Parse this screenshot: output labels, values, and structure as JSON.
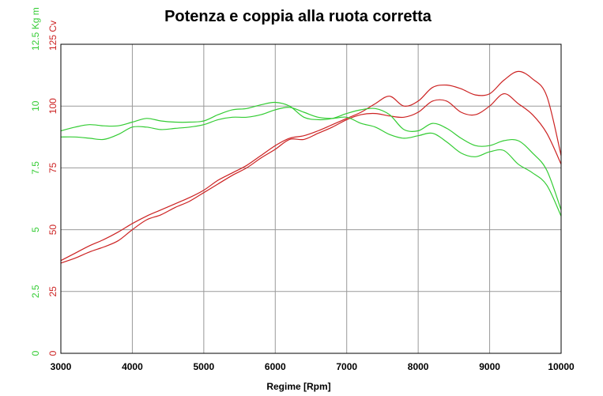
{
  "chart_data": {
    "type": "line",
    "title": "Potenza e coppia alla ruota corretta",
    "xlabel": "Regime [Rpm]",
    "xlim": [
      3000,
      10000
    ],
    "xticks": [
      "3000",
      "4000",
      "5000",
      "6000",
      "7000",
      "8000",
      "9000",
      "10000"
    ],
    "y_axes": [
      {
        "label": "12.5 Kg m",
        "color": "#33cc33",
        "ylim": [
          0,
          12.5
        ],
        "ticks": [
          "0",
          "2.5",
          "5",
          "7.5",
          "10",
          "12.5"
        ]
      },
      {
        "label": "125 Cv",
        "color": "#cc2222",
        "ylim": [
          0,
          125
        ],
        "ticks": [
          "0",
          "25",
          "50",
          "75",
          "100",
          "125"
        ]
      }
    ],
    "grid": true,
    "series": [
      {
        "axis": "power",
        "color": "#cc2222",
        "x": [
          3000,
          3200,
          3400,
          3600,
          3800,
          4000,
          4200,
          4400,
          4600,
          4800,
          5000,
          5200,
          5400,
          5600,
          5800,
          6000,
          6200,
          6400,
          6600,
          6800,
          7000,
          7200,
          7400,
          7600,
          7800,
          8000,
          8200,
          8400,
          8600,
          8800,
          9000,
          9200,
          9400,
          9600,
          9800,
          10000
        ],
        "y": [
          37.5,
          40.5,
          43.5,
          46,
          49,
          52.5,
          55.5,
          58,
          60.5,
          63,
          66,
          70,
          73,
          76,
          80,
          84,
          87,
          88,
          90,
          92.5,
          95,
          97.5,
          101,
          104,
          100,
          102,
          107.5,
          108.5,
          107,
          104.5,
          105,
          110.5,
          114,
          111,
          104,
          80
        ]
      },
      {
        "axis": "power",
        "color": "#cc2222",
        "x": [
          3000,
          3200,
          3400,
          3600,
          3800,
          4000,
          4200,
          4400,
          4600,
          4800,
          5000,
          5200,
          5400,
          5600,
          5800,
          6000,
          6200,
          6400,
          6600,
          6800,
          7000,
          7200,
          7400,
          7600,
          7800,
          8000,
          8200,
          8400,
          8600,
          8800,
          9000,
          9200,
          9400,
          9600,
          9800,
          10000
        ],
        "y": [
          36.5,
          38.5,
          41,
          43,
          45.5,
          50,
          54,
          56,
          59,
          61.5,
          65,
          68.5,
          72,
          75,
          79,
          82.5,
          86.5,
          86.5,
          89,
          91.5,
          94.5,
          96.5,
          97,
          96,
          95.5,
          97.5,
          102,
          102,
          97.5,
          96.5,
          100,
          105,
          101,
          96.5,
          89,
          76.5
        ]
      },
      {
        "axis": "torque",
        "color": "#33cc33",
        "x": [
          3000,
          3200,
          3400,
          3600,
          3800,
          4000,
          4200,
          4400,
          4600,
          4800,
          5000,
          5200,
          5400,
          5600,
          5800,
          6000,
          6200,
          6400,
          6600,
          6800,
          7000,
          7200,
          7400,
          7600,
          7800,
          8000,
          8200,
          8400,
          8600,
          8800,
          9000,
          9200,
          9400,
          9600,
          9800,
          10000
        ],
        "y": [
          9.0,
          9.15,
          9.25,
          9.2,
          9.2,
          9.35,
          9.5,
          9.4,
          9.35,
          9.35,
          9.4,
          9.65,
          9.85,
          9.9,
          10.05,
          10.15,
          10.0,
          9.55,
          9.45,
          9.5,
          9.7,
          9.85,
          9.9,
          9.65,
          9.05,
          9.0,
          9.3,
          9.1,
          8.7,
          8.4,
          8.4,
          8.6,
          8.6,
          8.1,
          7.4,
          5.8
        ]
      },
      {
        "axis": "torque",
        "color": "#33cc33",
        "x": [
          3000,
          3200,
          3400,
          3600,
          3800,
          4000,
          4200,
          4400,
          4600,
          4800,
          5000,
          5200,
          5400,
          5600,
          5800,
          6000,
          6200,
          6400,
          6600,
          6800,
          7000,
          7200,
          7400,
          7600,
          7800,
          8000,
          8200,
          8400,
          8600,
          8800,
          9000,
          9200,
          9400,
          9600,
          9800,
          10000
        ],
        "y": [
          8.75,
          8.75,
          8.7,
          8.65,
          8.85,
          9.15,
          9.15,
          9.05,
          9.1,
          9.15,
          9.25,
          9.45,
          9.55,
          9.55,
          9.65,
          9.85,
          9.95,
          9.75,
          9.55,
          9.5,
          9.55,
          9.3,
          9.15,
          8.85,
          8.7,
          8.8,
          8.9,
          8.55,
          8.1,
          7.95,
          8.15,
          8.2,
          7.65,
          7.3,
          6.8,
          5.55
        ]
      }
    ]
  }
}
